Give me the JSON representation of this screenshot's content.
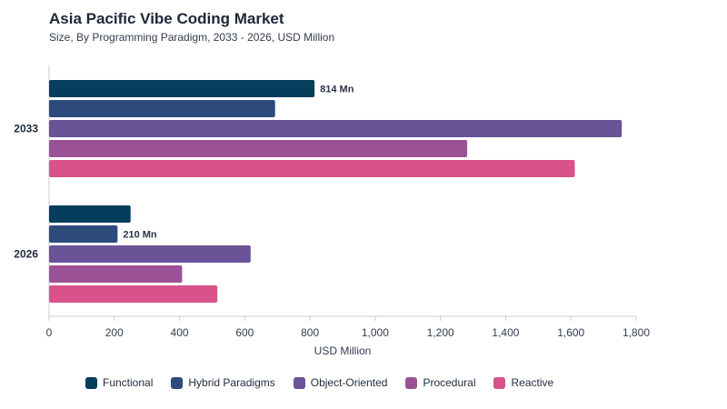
{
  "chart_data": {
    "type": "bar",
    "orientation": "horizontal",
    "title": "Asia Pacific Vibe Coding Market",
    "subtitle": "Size, By Programming Paradigm, 2033 - 2026, USD Million",
    "xlabel": "USD Million",
    "ylabel": "",
    "xlim": [
      0,
      1800
    ],
    "x_ticks": [
      0,
      200,
      400,
      600,
      800,
      1000,
      1200,
      1400,
      1600,
      1800
    ],
    "x_tick_labels": [
      "0",
      "200",
      "400",
      "600",
      "800",
      "1,000",
      "1,200",
      "1,400",
      "1,600",
      "1,800"
    ],
    "categories": [
      "2033",
      "2026"
    ],
    "series": [
      {
        "name": "Functional",
        "color": "#053d5c",
        "values": [
          814,
          250
        ]
      },
      {
        "name": "Hybrid Paradigms",
        "color": "#2d4a7c",
        "values": [
          693,
          210
        ]
      },
      {
        "name": "Object-Oriented",
        "color": "#6a5396",
        "values": [
          1756,
          618
        ]
      },
      {
        "name": "Procedural",
        "color": "#9b5196",
        "values": [
          1282,
          408
        ]
      },
      {
        "name": "Reactive",
        "color": "#d9538a",
        "values": [
          1612,
          516
        ]
      }
    ],
    "data_labels": [
      {
        "category": "2033",
        "series": "Functional",
        "text": "814 Mn"
      },
      {
        "category": "2026",
        "series": "Hybrid Paradigms",
        "text": "210 Mn"
      }
    ],
    "legend_position": "bottom",
    "grid": false
  }
}
